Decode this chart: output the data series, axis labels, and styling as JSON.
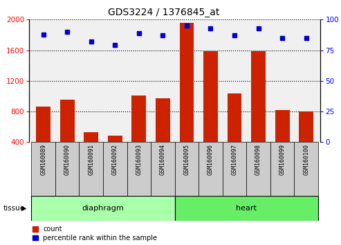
{
  "title": "GDS3224 / 1376845_at",
  "samples": [
    "GSM160089",
    "GSM160090",
    "GSM160091",
    "GSM160092",
    "GSM160093",
    "GSM160094",
    "GSM160095",
    "GSM160096",
    "GSM160097",
    "GSM160098",
    "GSM160099",
    "GSM160100"
  ],
  "counts": [
    860,
    950,
    530,
    480,
    1010,
    970,
    1960,
    1590,
    1040,
    1590,
    820,
    800
  ],
  "percentiles": [
    88,
    90,
    82,
    79,
    89,
    87,
    95,
    93,
    87,
    93,
    85,
    85
  ],
  "groups": [
    "diaphragm",
    "diaphragm",
    "diaphragm",
    "diaphragm",
    "diaphragm",
    "diaphragm",
    "heart",
    "heart",
    "heart",
    "heart",
    "heart",
    "heart"
  ],
  "bar_color": "#CC2200",
  "dot_color": "#0000CC",
  "ylim_left": [
    400,
    2000
  ],
  "ylim_right": [
    0,
    100
  ],
  "yticks_left": [
    400,
    800,
    1200,
    1600,
    2000
  ],
  "yticks_right": [
    0,
    25,
    50,
    75,
    100
  ],
  "bg_color": "#f0f0f0",
  "diaphragm_color": "#aaffaa",
  "heart_color": "#66ee66",
  "label_bg": "#cccccc"
}
